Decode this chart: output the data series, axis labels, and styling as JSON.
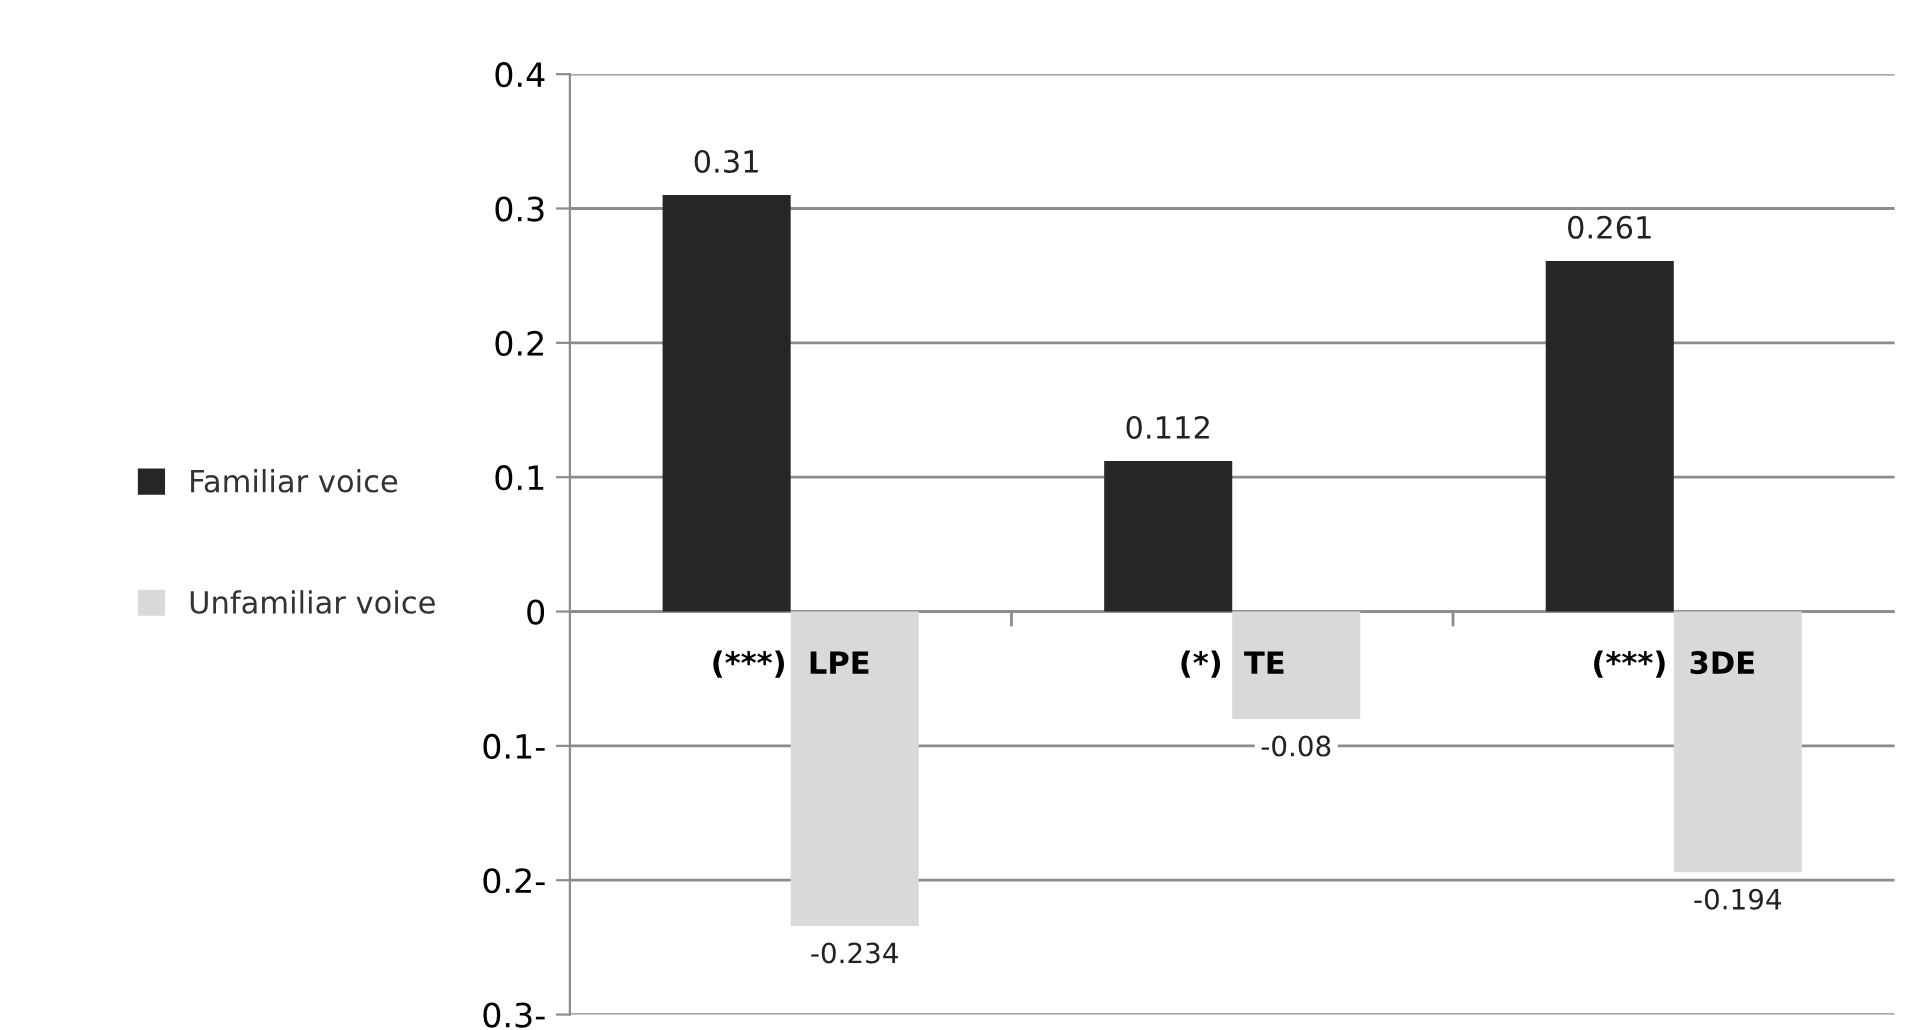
{
  "chart_data": {
    "type": "bar",
    "categories": [
      "(***)  LPE",
      "(*)  TE",
      "(***)  3DE"
    ],
    "series": [
      {
        "name": "Familiar voice",
        "color": "#262626",
        "values": [
          0.31,
          0.112,
          0.261
        ]
      },
      {
        "name": "Unfamiliar voice",
        "color": "#d9d9d9",
        "values": [
          -0.234,
          -0.08,
          -0.194
        ]
      }
    ],
    "ylim": [
      -0.3,
      0.4
    ],
    "yticks": [
      {
        "value": -0.3,
        "label": "0.3-"
      },
      {
        "value": -0.2,
        "label": "0.2-"
      },
      {
        "value": -0.1,
        "label": "0.1-"
      },
      0,
      0.1,
      0.2,
      0.3,
      0.4
    ],
    "grid": "y",
    "legend": "left",
    "data_labels": true
  }
}
